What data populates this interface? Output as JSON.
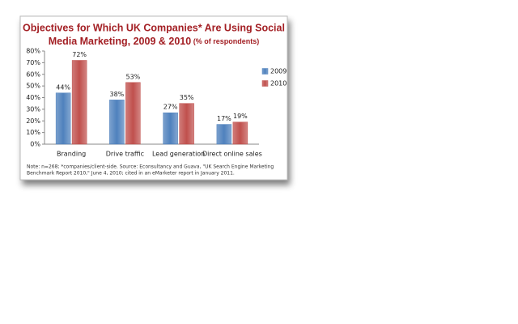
{
  "chart_data": {
    "type": "bar",
    "title": [
      "Objectives for Which UK Companies* Are Using Social",
      "Media Marketing, 2009 & 2010"
    ],
    "subtitle": "(% of respondents)",
    "categories": [
      "Branding",
      "Drive traffic",
      "Lead generation",
      "Direct online sales"
    ],
    "series": [
      {
        "name": "2009",
        "color": "#4f81bd",
        "values": [
          44,
          38,
          27,
          17
        ],
        "value_labels": [
          "44%",
          "38%",
          "27%",
          "17%"
        ]
      },
      {
        "name": "2010",
        "color": "#c0504d",
        "values": [
          72,
          53,
          35,
          19
        ],
        "value_labels": [
          "72%",
          "53%",
          "35%",
          "19%"
        ]
      }
    ],
    "ylim": [
      0,
      80
    ],
    "yticks": [
      {
        "value": 0,
        "label": "0%"
      },
      {
        "value": 10,
        "label": "10%"
      },
      {
        "value": 20,
        "label": "20%"
      },
      {
        "value": 30,
        "label": "30%"
      },
      {
        "value": 40,
        "label": "40%"
      },
      {
        "value": 50,
        "label": "50%"
      },
      {
        "value": 60,
        "label": "60%"
      },
      {
        "value": 70,
        "label": "70%"
      },
      {
        "value": 80,
        "label": "80%"
      }
    ],
    "grid": false,
    "legend": "right",
    "note": [
      "Note: n=268; *companies/client-side. Source: Econsultancy and Guava, \"UK Search Engine Marketing",
      "Benchmark Report 2010,\" June 4, 2010; cited in an eMarketer report in January 2011."
    ]
  }
}
